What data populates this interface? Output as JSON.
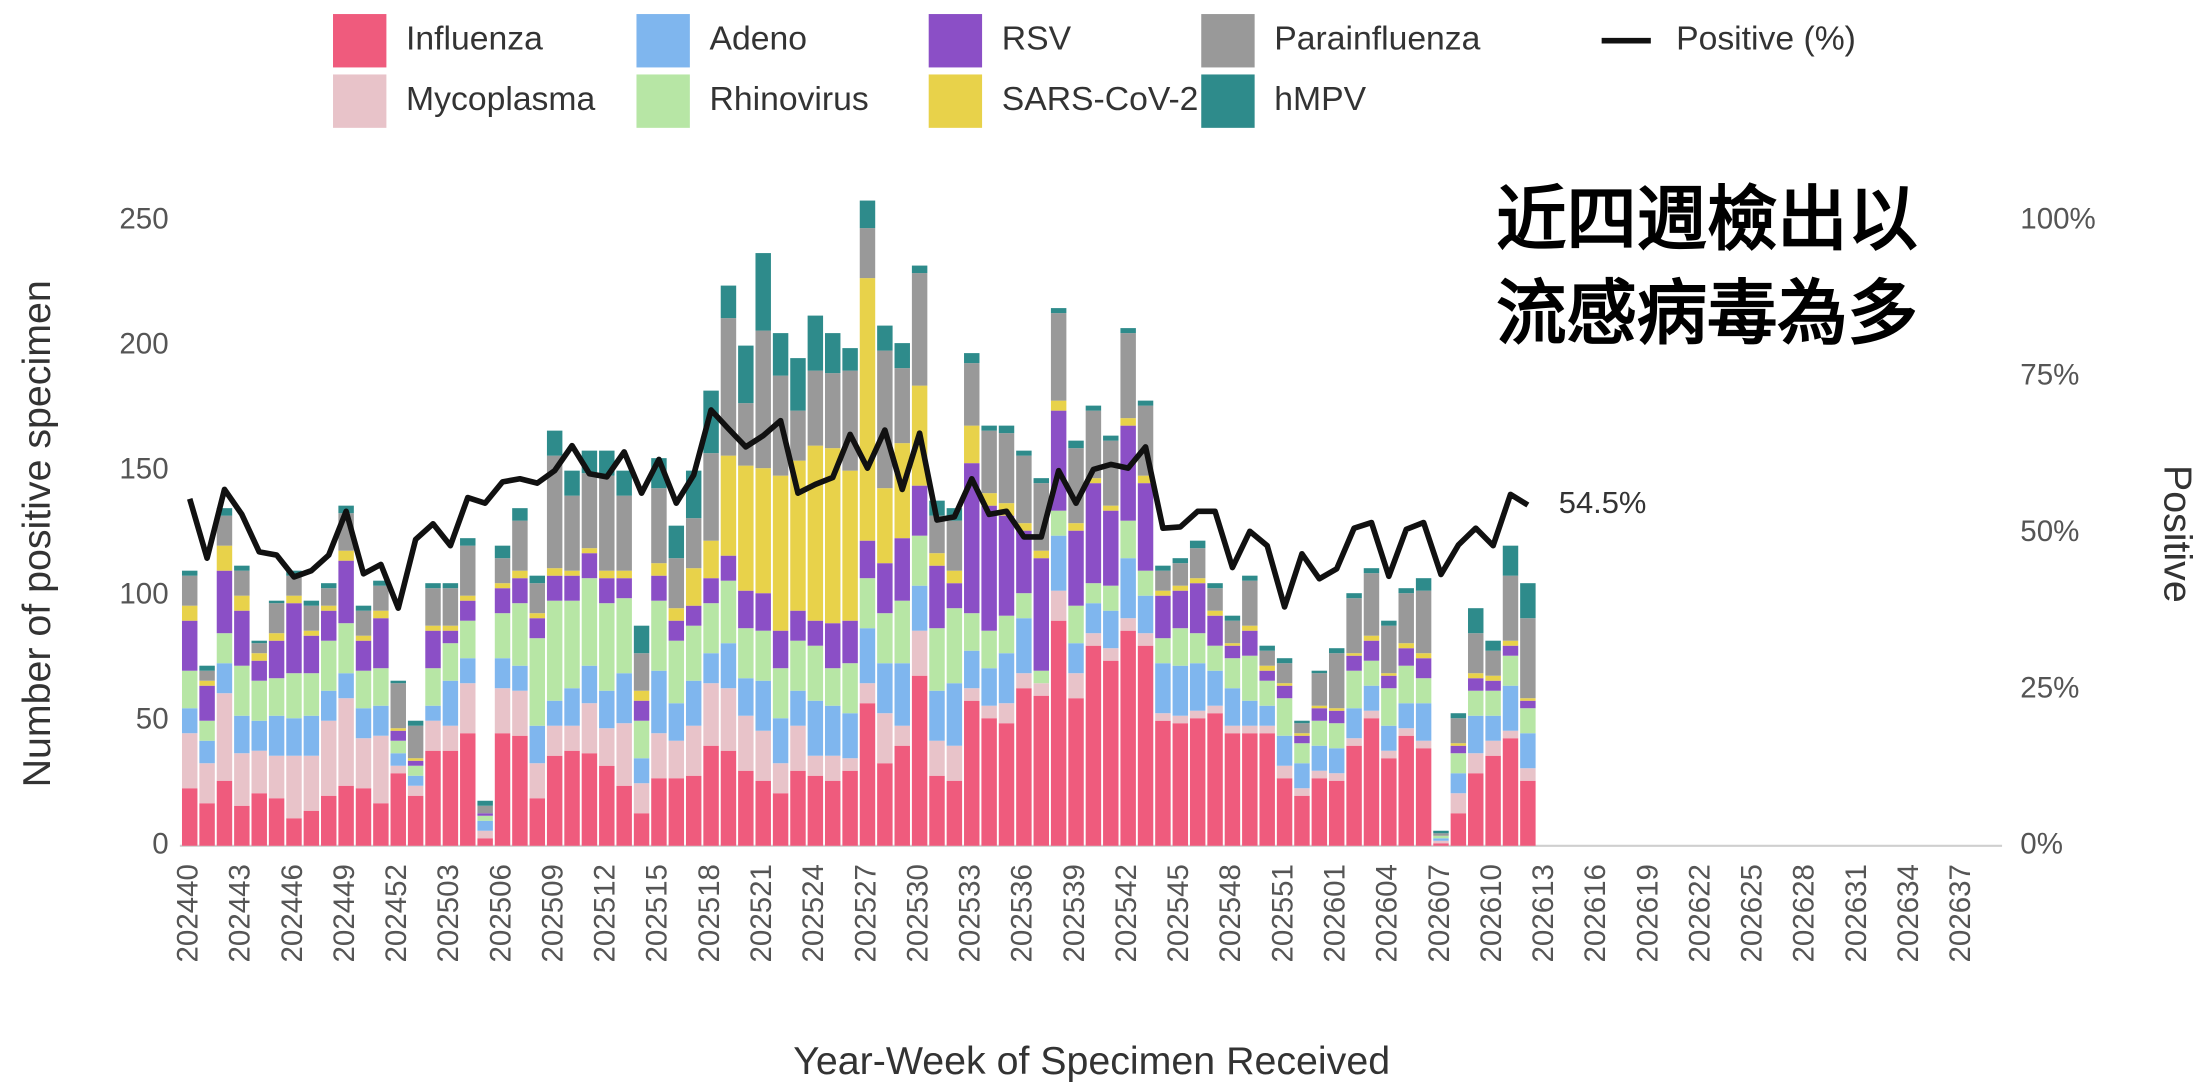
{
  "chart_data": {
    "type": "bar",
    "stacked": true,
    "grid": false,
    "legend_position": "top",
    "x_label": "Year-Week of Specimen Received",
    "y_label": "Number of positive specimen",
    "y2_label": "Positive",
    "annotation": [
      "近四週檢出以",
      "流感病毒為多"
    ],
    "ylim": [
      0,
      250
    ],
    "yticks": [
      0,
      50,
      100,
      150,
      200,
      250
    ],
    "y2lim": [
      0,
      100
    ],
    "y2ticks": [
      {
        "value": 0,
        "label": "0%"
      },
      {
        "value": 25,
        "label": "25%"
      },
      {
        "value": 50,
        "label": "50%"
      },
      {
        "value": 75,
        "label": "75%"
      },
      {
        "value": 100,
        "label": "100%"
      }
    ],
    "categories": [
      "202440",
      null,
      null,
      "202443",
      null,
      null,
      "202446",
      null,
      null,
      "202449",
      null,
      null,
      "202452",
      null,
      null,
      "202503",
      null,
      null,
      "202506",
      null,
      null,
      "202509",
      null,
      null,
      "202512",
      null,
      null,
      "202515",
      null,
      null,
      "202518",
      null,
      null,
      "202521",
      null,
      null,
      "202524",
      null,
      null,
      "202527",
      null,
      null,
      "202530",
      null,
      null,
      "202533",
      null,
      null,
      "202536",
      null,
      null,
      "202539",
      null,
      null,
      "202542",
      null,
      null,
      "202545",
      null,
      null,
      "202548",
      null,
      null,
      "202551",
      null,
      null,
      "202601",
      null,
      null,
      "202604",
      null,
      null,
      "202607",
      null,
      null,
      "202610",
      null,
      null,
      "202613",
      null,
      null,
      "202616",
      null,
      null,
      "202619",
      null,
      null,
      "202622",
      null,
      null,
      "202625",
      null,
      null,
      "202628",
      null,
      null,
      "202631",
      null,
      null,
      "202634",
      null,
      null,
      "202637",
      null,
      null
    ],
    "series": [
      {
        "name": "Influenza",
        "color": "#ef5b7d",
        "values": [
          23,
          17,
          26,
          16,
          21,
          19,
          11,
          14,
          20,
          24,
          23,
          17,
          29,
          20,
          38,
          38,
          45,
          3,
          45,
          44,
          19,
          36,
          38,
          37,
          32,
          24,
          13,
          27,
          27,
          28,
          40,
          38,
          30,
          26,
          21,
          30,
          28,
          26,
          30,
          57,
          33,
          40,
          68,
          28,
          26,
          58,
          51,
          49,
          63,
          60,
          90,
          59,
          80,
          74,
          86,
          80,
          50,
          49,
          51,
          53,
          45,
          45,
          45,
          27,
          20,
          27,
          26,
          40,
          51,
          35,
          44,
          39,
          1,
          13,
          29,
          36,
          43,
          26,
          null,
          null,
          null,
          null,
          null,
          null,
          null,
          null,
          null,
          null,
          null,
          null,
          null,
          null,
          null,
          null,
          null,
          null,
          null,
          null,
          null,
          null,
          null,
          null,
          null,
          null,
          null
        ]
      },
      {
        "name": "Mycoplasma",
        "color": "#e8c3c9",
        "values": [
          22,
          16,
          35,
          21,
          17,
          17,
          25,
          22,
          30,
          35,
          20,
          27,
          3,
          4,
          12,
          10,
          20,
          3,
          18,
          18,
          14,
          12,
          10,
          20,
          15,
          25,
          12,
          18,
          15,
          20,
          25,
          25,
          22,
          20,
          12,
          18,
          8,
          10,
          5,
          8,
          20,
          8,
          18,
          14,
          14,
          5,
          5,
          8,
          6,
          5,
          12,
          10,
          5,
          5,
          5,
          5,
          3,
          3,
          3,
          3,
          3,
          3,
          3,
          5,
          3,
          3,
          3,
          3,
          3,
          3,
          3,
          3,
          1,
          8,
          8,
          6,
          3,
          5,
          null,
          null,
          null,
          null,
          null,
          null,
          null,
          null,
          null,
          null,
          null,
          null,
          null,
          null,
          null,
          null,
          null,
          null,
          null,
          null,
          null,
          null,
          null,
          null,
          null,
          null,
          null
        ]
      },
      {
        "name": "Adeno",
        "color": "#7fb6ee",
        "values": [
          10,
          9,
          12,
          15,
          12,
          16,
          15,
          16,
          12,
          10,
          12,
          12,
          5,
          4,
          6,
          18,
          10,
          4,
          12,
          10,
          15,
          10,
          15,
          15,
          15,
          20,
          10,
          25,
          15,
          18,
          12,
          18,
          15,
          20,
          18,
          14,
          22,
          20,
          18,
          22,
          20,
          25,
          18,
          20,
          25,
          15,
          15,
          20,
          22,
          0,
          22,
          12,
          12,
          15,
          24,
          15,
          20,
          20,
          19,
          14,
          15,
          10,
          8,
          12,
          10,
          10,
          10,
          12,
          10,
          10,
          10,
          15,
          1,
          8,
          15,
          10,
          18,
          14,
          null,
          null,
          null,
          null,
          null,
          null,
          null,
          null,
          null,
          null,
          null,
          null,
          null,
          null,
          null,
          null,
          null,
          null,
          null,
          null,
          null,
          null,
          null,
          null,
          null,
          null,
          null
        ]
      },
      {
        "name": "Rhinovirus",
        "color": "#b7e6a5",
        "values": [
          15,
          8,
          12,
          20,
          16,
          15,
          18,
          17,
          20,
          20,
          15,
          15,
          5,
          4,
          15,
          15,
          15,
          2,
          18,
          25,
          35,
          40,
          35,
          35,
          35,
          30,
          15,
          28,
          25,
          22,
          20,
          25,
          20,
          20,
          20,
          20,
          22,
          15,
          20,
          20,
          20,
          25,
          20,
          25,
          30,
          15,
          15,
          15,
          10,
          5,
          10,
          15,
          8,
          10,
          15,
          10,
          10,
          15,
          12,
          10,
          12,
          18,
          10,
          15,
          8,
          10,
          10,
          15,
          10,
          15,
          15,
          10,
          1,
          8,
          10,
          10,
          12,
          10,
          null,
          null,
          null,
          null,
          null,
          null,
          null,
          null,
          null,
          null,
          null,
          null,
          null,
          null,
          null,
          null,
          null,
          null,
          null,
          null,
          null,
          null,
          null,
          null,
          null,
          null,
          null
        ]
      },
      {
        "name": "RSV",
        "color": "#8b4fc6",
        "values": [
          20,
          14,
          25,
          22,
          8,
          15,
          28,
          15,
          12,
          25,
          12,
          20,
          4,
          2,
          15,
          5,
          8,
          1,
          10,
          10,
          8,
          10,
          10,
          10,
          10,
          8,
          8,
          10,
          8,
          8,
          10,
          10,
          15,
          15,
          15,
          12,
          10,
          18,
          17,
          15,
          20,
          25,
          20,
          25,
          10,
          60,
          50,
          40,
          25,
          45,
          40,
          30,
          40,
          30,
          38,
          35,
          17,
          15,
          20,
          12,
          5,
          10,
          4,
          5,
          3,
          5,
          5,
          6,
          8,
          5,
          7,
          8,
          0,
          3,
          5,
          4,
          4,
          3,
          null,
          null,
          null,
          null,
          null,
          null,
          null,
          null,
          null,
          null,
          null,
          null,
          null,
          null,
          null,
          null,
          null,
          null,
          null,
          null,
          null,
          null,
          null,
          null,
          null,
          null,
          null
        ]
      },
      {
        "name": "SARS-CoV-2",
        "color": "#e8d24a",
        "values": [
          6,
          2,
          10,
          6,
          3,
          3,
          3,
          2,
          2,
          4,
          2,
          3,
          1,
          1,
          2,
          2,
          2,
          0,
          2,
          3,
          2,
          3,
          2,
          2,
          3,
          3,
          4,
          5,
          5,
          15,
          15,
          40,
          50,
          50,
          62,
          60,
          70,
          70,
          60,
          105,
          30,
          38,
          40,
          5,
          5,
          15,
          5,
          5,
          3,
          3,
          4,
          3,
          2,
          2,
          3,
          3,
          2,
          2,
          2,
          2,
          1,
          2,
          2,
          1,
          1,
          1,
          1,
          1,
          2,
          1,
          2,
          2,
          0,
          1,
          2,
          2,
          2,
          1,
          null,
          null,
          null,
          null,
          null,
          null,
          null,
          null,
          null,
          null,
          null,
          null,
          null,
          null,
          null,
          null,
          null,
          null,
          null,
          null,
          null,
          null,
          null,
          null,
          null,
          null,
          null
        ]
      },
      {
        "name": "Parainfluenza",
        "color": "#999999",
        "values": [
          12,
          4,
          12,
          10,
          4,
          12,
          8,
          10,
          7,
          15,
          10,
          10,
          18,
          13,
          15,
          15,
          20,
          3,
          10,
          20,
          12,
          45,
          30,
          30,
          38,
          30,
          15,
          30,
          20,
          20,
          35,
          55,
          25,
          55,
          40,
          20,
          30,
          30,
          40,
          20,
          55,
          30,
          45,
          15,
          20,
          25,
          25,
          28,
          27,
          27,
          35,
          30,
          27,
          26,
          34,
          28,
          8,
          9,
          12,
          9,
          9,
          18,
          6,
          8,
          4,
          13,
          22,
          22,
          25,
          19,
          20,
          25,
          1,
          10,
          16,
          10,
          26,
          32,
          null,
          null,
          null,
          null,
          null,
          null,
          null,
          null,
          null,
          null,
          null,
          null,
          null,
          null,
          null,
          null,
          null,
          null,
          null,
          null,
          null,
          null,
          null,
          null,
          null,
          null,
          null
        ]
      },
      {
        "name": "hMPV",
        "color": "#2e8b8b",
        "values": [
          2,
          2,
          3,
          2,
          1,
          1,
          2,
          2,
          2,
          3,
          2,
          2,
          1,
          2,
          2,
          2,
          3,
          2,
          5,
          5,
          3,
          10,
          10,
          9,
          10,
          10,
          11,
          12,
          13,
          19,
          25,
          13,
          23,
          31,
          17,
          21,
          22,
          16,
          9,
          11,
          10,
          10,
          3,
          6,
          5,
          4,
          2,
          3,
          2,
          2,
          2,
          3,
          2,
          2,
          2,
          2,
          2,
          2,
          3,
          2,
          2,
          2,
          2,
          2,
          1,
          1,
          2,
          2,
          2,
          2,
          2,
          5,
          1,
          2,
          10,
          4,
          12,
          14,
          null,
          null,
          null,
          null,
          null,
          null,
          null,
          null,
          null,
          null,
          null,
          null,
          null,
          null,
          null,
          null,
          null,
          null,
          null,
          null,
          null,
          null,
          null,
          null,
          null,
          null,
          null
        ]
      },
      {
        "name": "Positive (%)",
        "type": "line",
        "axis": "y2",
        "color": "#111111",
        "values": [
          55.5,
          46,
          57,
          53,
          47,
          46.5,
          43,
          44,
          46.5,
          53.5,
          43.5,
          45,
          38,
          49,
          51.5,
          48,
          55.7,
          54.8,
          58.2,
          58.7,
          58,
          60,
          64,
          59.5,
          59,
          63,
          56.4,
          61.8,
          54.8,
          59.3,
          69.7,
          66.7,
          63.8,
          65.6,
          68,
          56.4,
          57.8,
          58.9,
          65.8,
          60.4,
          66.5,
          57,
          66,
          52.1,
          52.6,
          58.7,
          53,
          53.5,
          49.4,
          49.4,
          60,
          54.8,
          60.2,
          61,
          60.4,
          63.8,
          50.8,
          51,
          53.5,
          53.5,
          44.5,
          50.3,
          48,
          38.2,
          46.7,
          42.7,
          44.3,
          50.8,
          51.7,
          43.1,
          50.6,
          51.7,
          43.4,
          48.1,
          50.8,
          48,
          56.2,
          54.5,
          null,
          null,
          null,
          null,
          null,
          null,
          null,
          null,
          null,
          null,
          null,
          null,
          null,
          null,
          null,
          null,
          null,
          null,
          null,
          null,
          null,
          null,
          null,
          null,
          null,
          null,
          null
        ],
        "value_labels": [
          null,
          null,
          null,
          null,
          null,
          null,
          null,
          null,
          null,
          null,
          null,
          null,
          null,
          null,
          null,
          null,
          null,
          null,
          null,
          null,
          null,
          null,
          null,
          null,
          null,
          null,
          null,
          null,
          null,
          null,
          null,
          null,
          null,
          null,
          null,
          null,
          null,
          null,
          null,
          null,
          null,
          null,
          null,
          null,
          null,
          null,
          null,
          null,
          null,
          null,
          null,
          null,
          null,
          null,
          null,
          null,
          null,
          null,
          null,
          null,
          null,
          null,
          null,
          null,
          null,
          null,
          null,
          null,
          null,
          null,
          null,
          null,
          null,
          null,
          null,
          null,
          null,
          "54.5%",
          null,
          null,
          null,
          null,
          null,
          null,
          null,
          null,
          null,
          null,
          null,
          null,
          null,
          null,
          null,
          null,
          null,
          null,
          null,
          null,
          null,
          null,
          null,
          null,
          null,
          null,
          null
        ]
      }
    ]
  }
}
